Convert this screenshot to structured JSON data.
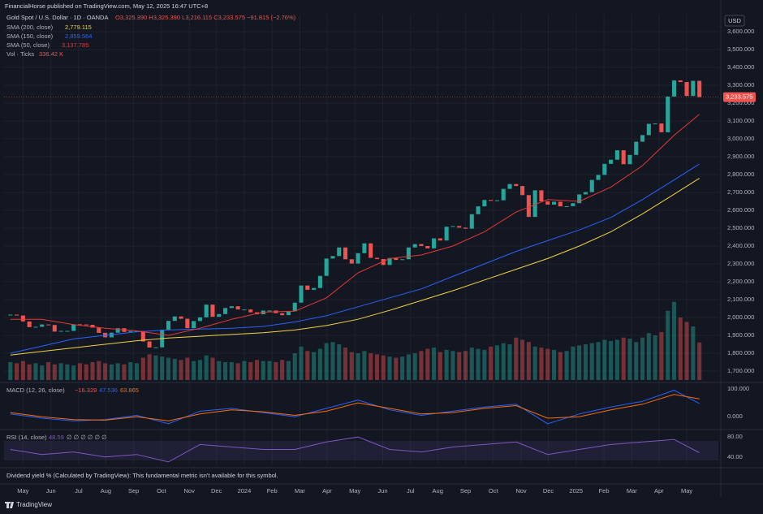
{
  "header": "FinancialHorse published on TradingView.com, May 12, 2025 16:47 UTC+8",
  "notice": "Dividend yield % (Calculated by TradingView): This fundamental metric isn't available for this symbol.",
  "footer_brand": "TradingView",
  "chart_data": [
    {
      "type": "candlestick",
      "title": "Gold Spot / U.S. Dollar · 1D · OANDA",
      "ohlc": "O3,325.390 H3,325.390 L3,216.115 C3,233.575 −91.815 (−2.76%)",
      "currency": "USD",
      "last_price_label": "3,233.575",
      "up_color": "#26a69a",
      "down_color": "#ef5350",
      "grid": true,
      "close": [
        2016,
        2011,
        1978,
        1946,
        1948,
        1961,
        1958,
        1921,
        1925,
        1925,
        1962,
        1961,
        1959,
        1943,
        1914,
        1889,
        1915,
        1940,
        1919,
        1924,
        1925,
        1866,
        1832,
        1833,
        1932,
        1981,
        2006,
        1993,
        1940,
        1980,
        2001,
        2072,
        2004,
        2019,
        2053,
        2063,
        2045,
        2045,
        2029,
        2018,
        2039,
        2039,
        2024,
        2013,
        2035,
        2083,
        2179,
        2155,
        2165,
        2233,
        2330,
        2344,
        2392,
        2326,
        2302,
        2360,
        2415,
        2334,
        2327,
        2294,
        2333,
        2322,
        2326,
        2392,
        2411,
        2400,
        2387,
        2443,
        2431,
        2508,
        2512,
        2503,
        2497,
        2578,
        2622,
        2658,
        2653,
        2656,
        2720,
        2747,
        2736,
        2685,
        2563,
        2712,
        2650,
        2632,
        2648,
        2622,
        2623,
        2640,
        2689,
        2702,
        2770,
        2798,
        2860,
        2883,
        2936,
        2858,
        2910,
        2984,
        3021,
        3084,
        3086,
        3037,
        3237,
        3327,
        3318,
        3240,
        3325,
        3233.575
      ],
      "xlim": [
        -1,
        112
      ],
      "xticks": [
        {
          "value": 2,
          "label": "May"
        },
        {
          "value": 6.4,
          "label": "Jun"
        },
        {
          "value": 10.8,
          "label": "Jul"
        },
        {
          "value": 15.1,
          "label": "Aug"
        },
        {
          "value": 19.5,
          "label": "Sep"
        },
        {
          "value": 23.9,
          "label": "Oct"
        },
        {
          "value": 28.3,
          "label": "Nov"
        },
        {
          "value": 32.6,
          "label": "Dec"
        },
        {
          "value": 37,
          "label": "2024"
        },
        {
          "value": 41.4,
          "label": "Feb"
        },
        {
          "value": 45.8,
          "label": "Mar"
        },
        {
          "value": 50.1,
          "label": "Apr"
        },
        {
          "value": 54.5,
          "label": "May"
        },
        {
          "value": 58.9,
          "label": "Jun"
        },
        {
          "value": 63.3,
          "label": "Jul"
        },
        {
          "value": 67.6,
          "label": "Aug"
        },
        {
          "value": 72,
          "label": "Sep"
        },
        {
          "value": 76.4,
          "label": "Oct"
        },
        {
          "value": 80.8,
          "label": "Nov"
        },
        {
          "value": 85.1,
          "label": "Dec"
        },
        {
          "value": 89.5,
          "label": "2025"
        },
        {
          "value": 93.9,
          "label": "Feb"
        },
        {
          "value": 98.3,
          "label": "Mar"
        },
        {
          "value": 102.6,
          "label": "Apr"
        },
        {
          "value": 107,
          "label": "May"
        }
      ],
      "ylim": [
        1650,
        3650
      ],
      "yticks": [
        {
          "value": 1700,
          "label": "1,700.000"
        },
        {
          "value": 1800,
          "label": "1,800.000"
        },
        {
          "value": 1900,
          "label": "1,900.000"
        },
        {
          "value": 2000,
          "label": "2,000.000"
        },
        {
          "value": 2100,
          "label": "2,100.000"
        },
        {
          "value": 2200,
          "label": "2,200.000"
        },
        {
          "value": 2300,
          "label": "2,300.000"
        },
        {
          "value": 2400,
          "label": "2,400.000"
        },
        {
          "value": 2500,
          "label": "2,500.000"
        },
        {
          "value": 2600,
          "label": "2,600.000"
        },
        {
          "value": 2700,
          "label": "2,700.000"
        },
        {
          "value": 2800,
          "label": "2,800.000"
        },
        {
          "value": 2900,
          "label": "2,900.000"
        },
        {
          "value": 3000,
          "label": "3,000.000"
        },
        {
          "value": 3100,
          "label": "3,100.000"
        },
        {
          "value": 3200,
          "label": "3,200.000"
        },
        {
          "value": 3300,
          "label": "3,300.000"
        },
        {
          "value": 3400,
          "label": "3,400.000"
        },
        {
          "value": 3500,
          "label": "3,500.000"
        },
        {
          "value": 3600,
          "label": "3,600.000"
        }
      ],
      "overlays": [
        {
          "name": "SMA (200, close)",
          "value_label": "2,779.115",
          "color": "#f5d142",
          "x": [
            0,
            5,
            10,
            15,
            20,
            25,
            30,
            35,
            40,
            45,
            50,
            55,
            60,
            65,
            70,
            75,
            80,
            85,
            90,
            95,
            100,
            105,
            109
          ],
          "values": [
            1790,
            1810,
            1830,
            1850,
            1870,
            1885,
            1895,
            1905,
            1915,
            1930,
            1955,
            1990,
            2040,
            2095,
            2150,
            2210,
            2270,
            2330,
            2400,
            2480,
            2580,
            2690,
            2779.115
          ]
        },
        {
          "name": "SMA (150, close)",
          "value_label": "2,859.564",
          "color": "#2962ff",
          "x": [
            0,
            5,
            10,
            15,
            20,
            25,
            30,
            35,
            40,
            45,
            50,
            55,
            60,
            65,
            70,
            75,
            80,
            85,
            90,
            95,
            100,
            105,
            109
          ],
          "values": [
            1800,
            1840,
            1880,
            1900,
            1920,
            1930,
            1935,
            1940,
            1950,
            1975,
            2010,
            2060,
            2110,
            2160,
            2230,
            2300,
            2370,
            2430,
            2490,
            2560,
            2660,
            2770,
            2859.564
          ]
        },
        {
          "name": "SMA (50, close)",
          "value_label": "3,137.785",
          "color": "#e53935",
          "x": [
            0,
            5,
            10,
            15,
            20,
            25,
            30,
            35,
            40,
            45,
            50,
            55,
            60,
            65,
            70,
            75,
            80,
            85,
            90,
            95,
            100,
            105,
            109
          ],
          "values": [
            1990,
            1990,
            1960,
            1940,
            1925,
            1900,
            1940,
            1990,
            2030,
            2035,
            2110,
            2250,
            2330,
            2350,
            2400,
            2480,
            2590,
            2660,
            2650,
            2730,
            2850,
            3020,
            3137.785
          ]
        }
      ],
      "volume": {
        "name": "Vol · Ticks",
        "value_label": "336.42 K",
        "ylim": [
          0,
          800
        ],
        "values": [
          160,
          150,
          170,
          140,
          150,
          130,
          160,
          140,
          150,
          140,
          130,
          150,
          140,
          160,
          170,
          150,
          140,
          150,
          140,
          160,
          150,
          200,
          230,
          220,
          210,
          200,
          190,
          180,
          200,
          170,
          180,
          220,
          200,
          170,
          160,
          160,
          150,
          170,
          160,
          180,
          170,
          170,
          160,
          180,
          170,
          240,
          300,
          260,
          250,
          280,
          330,
          340,
          320,
          290,
          250,
          240,
          260,
          240,
          230,
          220,
          210,
          200,
          210,
          230,
          240,
          260,
          280,
          290,
          250,
          270,
          260,
          250,
          260,
          290,
          280,
          270,
          300,
          310,
          330,
          320,
          380,
          360,
          340,
          300,
          290,
          280,
          270,
          250,
          260,
          300,
          310,
          320,
          330,
          340,
          360,
          350,
          360,
          380,
          370,
          340,
          380,
          420,
          400,
          430,
          620,
          700,
          560,
          520,
          480,
          336.42
        ]
      }
    },
    {
      "type": "line",
      "title": "MACD (12, 26, close)",
      "legend_values": [
        "−16.329",
        "47.536",
        "63.865"
      ],
      "xlim": [
        -1,
        112
      ],
      "ylim": [
        -40,
        120
      ],
      "yticks": [
        {
          "value": 0,
          "label": "0.000"
        },
        {
          "value": 100,
          "label": "100.000"
        }
      ],
      "x": [
        0,
        5,
        10,
        15,
        20,
        25,
        30,
        35,
        40,
        45,
        50,
        55,
        60,
        65,
        70,
        75,
        80,
        85,
        90,
        95,
        100,
        105,
        109
      ],
      "series": [
        {
          "color": "#2962ff",
          "values": [
            10,
            -5,
            -15,
            -10,
            5,
            -25,
            20,
            30,
            15,
            0,
            30,
            60,
            25,
            5,
            20,
            35,
            45,
            -25,
            10,
            35,
            55,
            95,
            47.536
          ]
        },
        {
          "color": "#ff6d00",
          "values": [
            15,
            0,
            -10,
            -12,
            0,
            -15,
            10,
            25,
            18,
            5,
            20,
            50,
            30,
            10,
            15,
            30,
            40,
            -5,
            0,
            25,
            45,
            80,
            63.865
          ]
        }
      ]
    },
    {
      "type": "line",
      "title": "RSI (14, close)",
      "legend_value": "48.59",
      "legend_extra": "∅ ∅ ∅ ∅ ∅ ∅",
      "xlim": [
        -1,
        112
      ],
      "ylim": [
        25,
        90
      ],
      "yticks": [
        {
          "value": 40,
          "label": "40.00"
        },
        {
          "value": 80,
          "label": "80.00"
        }
      ],
      "x": [
        0,
        5,
        10,
        15,
        20,
        25,
        30,
        35,
        40,
        45,
        50,
        55,
        60,
        65,
        70,
        75,
        80,
        85,
        90,
        95,
        100,
        105,
        109
      ],
      "series": [
        {
          "color": "#7e57c2",
          "values": [
            55,
            45,
            50,
            40,
            45,
            30,
            65,
            60,
            55,
            55,
            70,
            80,
            55,
            50,
            60,
            65,
            70,
            45,
            55,
            65,
            70,
            75,
            48.59
          ]
        }
      ]
    }
  ]
}
